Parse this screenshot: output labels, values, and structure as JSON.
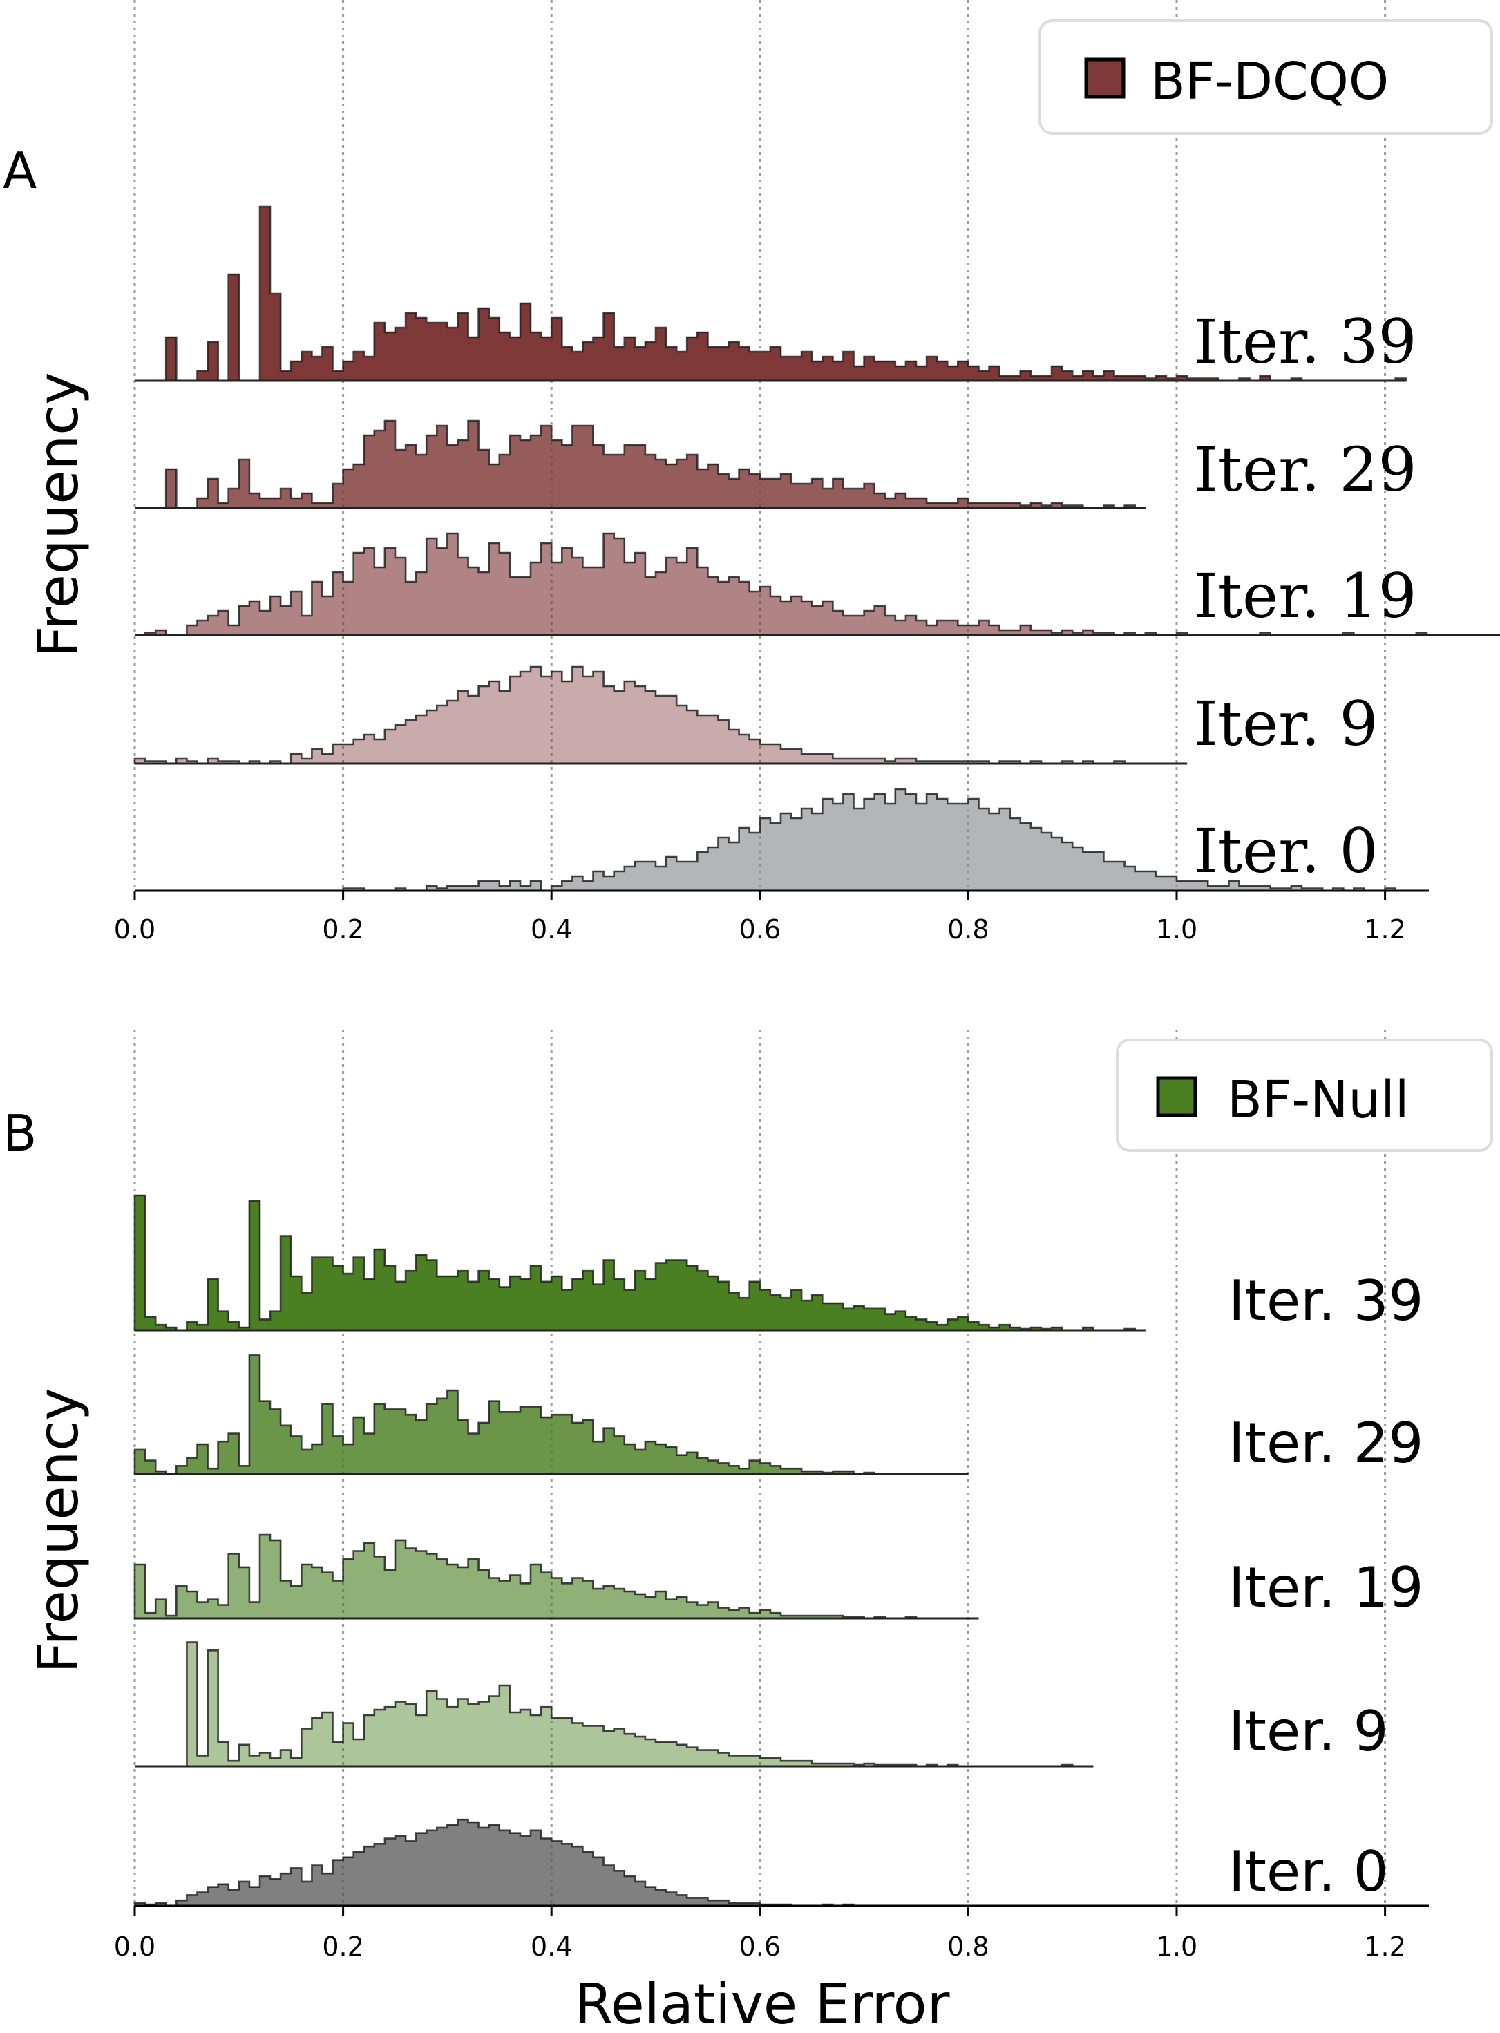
{
  "chart_data": [
    {
      "panel_label": "A",
      "type": "histogram-ridgeline",
      "ylabel": "Frequency",
      "xlabel": "",
      "xlim": [
        0.0,
        1.25
      ],
      "xticks": [
        0.0,
        0.2,
        0.4,
        0.6,
        0.8,
        1.0,
        1.2
      ],
      "xtick_labels": [
        "0.0",
        "0.2",
        "0.4",
        "0.6",
        "0.8",
        "1.0",
        "1.2"
      ],
      "grid": "vertical dotted",
      "legend": {
        "label": "BF-DCQO",
        "color": "#7f3838",
        "position": "top-right"
      },
      "label_style": "serif",
      "bin_width": 0.01,
      "series": [
        {
          "name": "Iter. 39",
          "label": "Iter. 39",
          "color": "#7f3838",
          "opacity": 1.0,
          "start": 0.03,
          "values": [
            18,
            0,
            0,
            4,
            16,
            0,
            44,
            0,
            0,
            72,
            36,
            4,
            8,
            12,
            10,
            14,
            4,
            8,
            12,
            10,
            24,
            20,
            22,
            28,
            26,
            24,
            24,
            22,
            28,
            18,
            30,
            26,
            20,
            18,
            32,
            20,
            18,
            26,
            14,
            12,
            16,
            18,
            28,
            14,
            18,
            14,
            16,
            22,
            14,
            12,
            18,
            20,
            14,
            14,
            16,
            14,
            12,
            12,
            14,
            10,
            10,
            12,
            8,
            10,
            8,
            12,
            6,
            10,
            8,
            8,
            6,
            8,
            6,
            10,
            8,
            6,
            8,
            6,
            4,
            6,
            2,
            2,
            4,
            2,
            2,
            6,
            4,
            2,
            4,
            2,
            4,
            2,
            2,
            2,
            1,
            2,
            1,
            2,
            1,
            1,
            1,
            0,
            0,
            1,
            0,
            2,
            0,
            0,
            1,
            0,
            0,
            0,
            0,
            0,
            0,
            0,
            0,
            0,
            1
          ]
        },
        {
          "name": "Iter. 29",
          "label": "Iter. 29",
          "color": "#7f3838",
          "opacity": 0.82,
          "start": 0.03,
          "values": [
            16,
            0,
            0,
            4,
            12,
            2,
            8,
            20,
            6,
            4,
            4,
            8,
            4,
            6,
            2,
            2,
            10,
            16,
            18,
            30,
            32,
            36,
            24,
            26,
            22,
            30,
            34,
            26,
            28,
            36,
            24,
            18,
            22,
            30,
            28,
            30,
            34,
            28,
            26,
            34,
            34,
            26,
            22,
            22,
            26,
            26,
            22,
            20,
            18,
            20,
            22,
            16,
            18,
            14,
            12,
            16,
            14,
            12,
            12,
            14,
            10,
            10,
            12,
            8,
            12,
            8,
            8,
            10,
            6,
            4,
            6,
            4,
            4,
            2,
            2,
            2,
            4,
            2,
            2,
            2,
            2,
            2,
            1,
            2,
            1,
            2,
            1,
            1,
            0,
            0,
            1,
            0,
            1,
            0
          ]
        },
        {
          "name": "Iter. 19",
          "label": "Iter. 19",
          "color": "#7f3838",
          "opacity": 0.62,
          "start": 0.0,
          "values": [
            0,
            1,
            2,
            0,
            0,
            4,
            6,
            8,
            10,
            4,
            12,
            14,
            10,
            16,
            12,
            18,
            8,
            22,
            16,
            26,
            22,
            34,
            36,
            28,
            36,
            32,
            22,
            26,
            40,
            36,
            42,
            32,
            28,
            26,
            38,
            34,
            24,
            24,
            30,
            38,
            30,
            36,
            32,
            28,
            28,
            42,
            40,
            30,
            34,
            24,
            26,
            32,
            30,
            36,
            28,
            24,
            22,
            24,
            22,
            18,
            20,
            16,
            14,
            16,
            14,
            12,
            14,
            10,
            8,
            8,
            10,
            12,
            8,
            6,
            8,
            6,
            4,
            6,
            6,
            4,
            4,
            6,
            4,
            2,
            2,
            4,
            2,
            2,
            1,
            2,
            1,
            2,
            1,
            1,
            0,
            1,
            0,
            1,
            0,
            0,
            1,
            0,
            0,
            0,
            0,
            0,
            0,
            0,
            1,
            0,
            0,
            0,
            0,
            0,
            0,
            0,
            1,
            0,
            0,
            0,
            0,
            0,
            0,
            1,
            0,
            0,
            0,
            0,
            0,
            0,
            0,
            0,
            1
          ]
        },
        {
          "name": "Iter. 9",
          "label": "Iter. 9",
          "color": "#7f3838",
          "opacity": 0.42,
          "start": 0.0,
          "values": [
            2,
            1,
            1,
            0,
            2,
            1,
            0,
            2,
            1,
            1,
            0,
            1,
            0,
            1,
            0,
            4,
            2,
            6,
            4,
            8,
            8,
            10,
            12,
            10,
            14,
            16,
            18,
            20,
            22,
            24,
            26,
            30,
            28,
            32,
            34,
            30,
            36,
            38,
            40,
            36,
            38,
            34,
            40,
            36,
            38,
            32,
            30,
            34,
            32,
            30,
            28,
            28,
            24,
            22,
            20,
            20,
            18,
            14,
            12,
            10,
            8,
            8,
            6,
            6,
            4,
            4,
            4,
            2,
            2,
            2,
            2,
            2,
            1,
            2,
            2,
            1,
            1,
            1,
            1,
            1,
            1,
            1,
            0,
            1,
            1,
            0,
            1,
            0,
            0,
            1,
            0,
            1,
            0,
            0,
            1,
            0,
            0,
            0,
            0,
            0,
            0
          ]
        },
        {
          "name": "Iter. 0",
          "label": "Iter. 0",
          "color": "#8a8f8f",
          "opacity": 0.65,
          "start": 0.2,
          "values": [
            1,
            1,
            0,
            0,
            0,
            1,
            0,
            0,
            2,
            1,
            2,
            2,
            2,
            4,
            4,
            2,
            4,
            2,
            4,
            0,
            2,
            4,
            6,
            4,
            8,
            6,
            8,
            10,
            12,
            12,
            10,
            14,
            12,
            12,
            16,
            18,
            22,
            20,
            26,
            24,
            30,
            28,
            32,
            30,
            34,
            32,
            38,
            36,
            40,
            34,
            38,
            40,
            36,
            42,
            40,
            36,
            40,
            38,
            36,
            36,
            38,
            34,
            32,
            34,
            30,
            28,
            26,
            24,
            22,
            20,
            18,
            16,
            16,
            12,
            12,
            10,
            8,
            8,
            6,
            6,
            4,
            4,
            4,
            2,
            2,
            4,
            2,
            2,
            2,
            1,
            1,
            2,
            1,
            1,
            0,
            1,
            0,
            1,
            0,
            0,
            1,
            0,
            0
          ]
        }
      ]
    },
    {
      "panel_label": "B",
      "type": "histogram-ridgeline",
      "ylabel": "Frequency",
      "xlabel": "Relative Error",
      "xlim": [
        0.0,
        1.25
      ],
      "xticks": [
        0.0,
        0.2,
        0.4,
        0.6,
        0.8,
        1.0,
        1.2
      ],
      "xtick_labels": [
        "0.0",
        "0.2",
        "0.4",
        "0.6",
        "0.8",
        "1.0",
        "1.2"
      ],
      "grid": "vertical dotted",
      "legend": {
        "label": "BF-Null",
        "color": "#4a7f22",
        "position": "top-right"
      },
      "label_style": "sans",
      "bin_width": 0.01,
      "series": [
        {
          "name": "Iter. 39",
          "label": "Iter. 39",
          "color": "#4a7f22",
          "opacity": 1.0,
          "start": 0.0,
          "values": [
            100,
            10,
            4,
            2,
            0,
            6,
            4,
            38,
            14,
            6,
            2,
            96,
            8,
            14,
            70,
            40,
            28,
            54,
            54,
            48,
            42,
            54,
            38,
            60,
            48,
            36,
            44,
            56,
            52,
            40,
            40,
            44,
            36,
            44,
            38,
            32,
            40,
            38,
            48,
            36,
            40,
            30,
            38,
            44,
            34,
            52,
            38,
            30,
            44,
            38,
            50,
            52,
            52,
            48,
            44,
            40,
            36,
            28,
            24,
            36,
            30,
            26,
            24,
            30,
            22,
            26,
            20,
            20,
            16,
            18,
            16,
            16,
            12,
            14,
            10,
            8,
            6,
            4,
            8,
            10,
            6,
            4,
            2,
            4,
            2,
            1,
            2,
            1,
            2,
            0,
            0,
            2,
            0,
            0,
            0,
            1,
            0
          ]
        },
        {
          "name": "Iter. 29",
          "label": "Iter. 29",
          "color": "#4a7f22",
          "opacity": 0.82,
          "start": 0.0,
          "values": [
            18,
            10,
            2,
            0,
            6,
            12,
            22,
            4,
            24,
            30,
            6,
            88,
            54,
            48,
            36,
            28,
            18,
            22,
            52,
            28,
            22,
            42,
            30,
            52,
            48,
            48,
            44,
            40,
            52,
            56,
            62,
            40,
            30,
            38,
            54,
            46,
            46,
            50,
            50,
            42,
            44,
            44,
            38,
            40,
            24,
            34,
            28,
            22,
            18,
            24,
            22,
            20,
            14,
            16,
            12,
            10,
            8,
            6,
            4,
            10,
            8,
            6,
            4,
            4,
            2,
            2,
            1,
            2,
            2,
            0,
            1,
            0,
            0,
            0,
            0,
            0,
            0,
            0,
            0,
            0
          ]
        },
        {
          "name": "Iter. 19",
          "label": "Iter. 19",
          "color": "#4a7f22",
          "opacity": 0.62,
          "start": 0.0,
          "values": [
            40,
            4,
            14,
            2,
            24,
            20,
            12,
            14,
            10,
            48,
            38,
            12,
            62,
            58,
            28,
            24,
            40,
            38,
            34,
            28,
            44,
            50,
            56,
            46,
            36,
            58,
            52,
            50,
            48,
            44,
            40,
            38,
            44,
            36,
            30,
            28,
            32,
            26,
            40,
            34,
            30,
            26,
            30,
            28,
            22,
            24,
            22,
            20,
            18,
            16,
            20,
            14,
            16,
            12,
            10,
            12,
            8,
            6,
            8,
            4,
            6,
            4,
            2,
            2,
            2,
            2,
            2,
            2,
            1,
            1,
            0,
            1,
            0,
            0,
            1,
            0,
            0,
            0,
            0,
            0,
            0
          ]
        },
        {
          "name": "Iter. 9",
          "label": "Iter. 9",
          "color": "#4a7f22",
          "opacity": 0.45,
          "start": 0.05,
          "values": [
            92,
            8,
            86,
            18,
            4,
            16,
            8,
            10,
            6,
            12,
            6,
            28,
            36,
            40,
            18,
            32,
            20,
            38,
            42,
            44,
            48,
            46,
            38,
            56,
            50,
            44,
            50,
            46,
            48,
            52,
            60,
            40,
            42,
            38,
            44,
            36,
            36,
            32,
            30,
            30,
            26,
            28,
            24,
            22,
            20,
            18,
            18,
            16,
            14,
            12,
            12,
            10,
            8,
            8,
            8,
            6,
            6,
            4,
            4,
            4,
            2,
            2,
            2,
            2,
            1,
            2,
            1,
            1,
            1,
            1,
            0,
            1,
            0,
            1,
            0,
            0,
            0,
            0,
            0,
            0,
            0,
            0,
            0,
            0,
            1,
            0,
            0
          ]
        },
        {
          "name": "Iter. 0",
          "label": "Iter. 0",
          "color": "#555555",
          "opacity": 0.75,
          "start": 0.0,
          "values": [
            2,
            1,
            2,
            0,
            4,
            8,
            10,
            14,
            16,
            12,
            18,
            14,
            22,
            20,
            24,
            28,
            18,
            30,
            24,
            34,
            36,
            40,
            44,
            46,
            50,
            52,
            48,
            54,
            56,
            58,
            60,
            64,
            62,
            58,
            60,
            56,
            54,
            52,
            56,
            50,
            48,
            46,
            44,
            40,
            36,
            30,
            26,
            22,
            18,
            14,
            12,
            10,
            8,
            6,
            6,
            4,
            4,
            2,
            2,
            2,
            1,
            1,
            1,
            0,
            0,
            0,
            1,
            0,
            1,
            0
          ]
        }
      ]
    }
  ]
}
